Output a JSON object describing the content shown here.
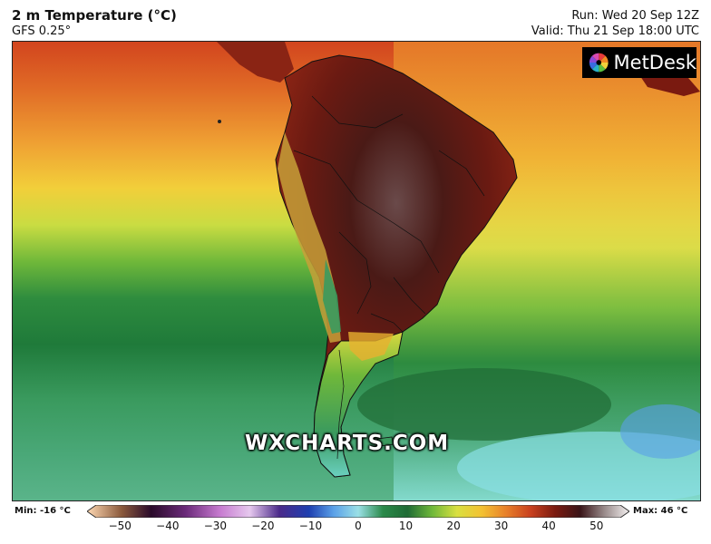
{
  "header": {
    "title": "2 m Temperature (°C)",
    "model": "GFS 0.25°",
    "run": "Run: Wed 20 Sep 12Z",
    "valid": "Valid: Thu 21 Sep 18:00 UTC"
  },
  "logo": {
    "text": "MetDesk"
  },
  "watermark": "WXCHARTS.COM",
  "legend": {
    "min_label": "Min: -16 °C",
    "max_label": "Max: 46 °C",
    "ticks": [
      "−50",
      "−40",
      "−30",
      "−20",
      "−10",
      "0",
      "10",
      "20",
      "30",
      "40",
      "50"
    ],
    "range": [
      -55,
      55
    ],
    "stops": [
      {
        "v": -55,
        "c": "#ffd9b3"
      },
      {
        "v": -48,
        "c": "#8b5a3c"
      },
      {
        "v": -42,
        "c": "#2a0a2a"
      },
      {
        "v": -35,
        "c": "#6b2a7a"
      },
      {
        "v": -28,
        "c": "#c77bd0"
      },
      {
        "v": -22,
        "c": "#e6c8ee"
      },
      {
        "v": -16,
        "c": "#4b2a8a"
      },
      {
        "v": -10,
        "c": "#1e3fb0"
      },
      {
        "v": -5,
        "c": "#5aa0e8"
      },
      {
        "v": 0,
        "c": "#9ae0e6"
      },
      {
        "v": 5,
        "c": "#2a8a4a"
      },
      {
        "v": 10,
        "c": "#1f6b35"
      },
      {
        "v": 15,
        "c": "#6fb83a"
      },
      {
        "v": 20,
        "c": "#d9e040"
      },
      {
        "v": 25,
        "c": "#f3c232"
      },
      {
        "v": 30,
        "c": "#e8802a"
      },
      {
        "v": 35,
        "c": "#c8401e"
      },
      {
        "v": 40,
        "c": "#7a1a10"
      },
      {
        "v": 45,
        "c": "#3a1418"
      },
      {
        "v": 50,
        "c": "#9a8c8c"
      },
      {
        "v": 55,
        "c": "#f4f0f0"
      }
    ]
  }
}
